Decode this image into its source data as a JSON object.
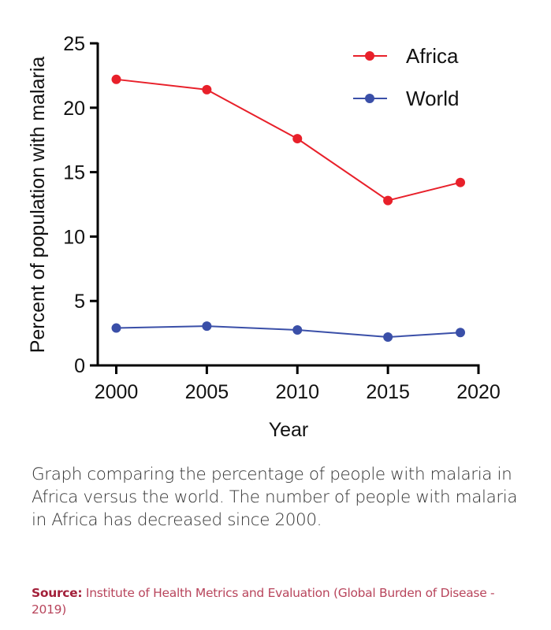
{
  "chart_data": {
    "type": "line",
    "xlabel": "Year",
    "ylabel": "Percent of population with malaria",
    "xlim": [
      2000,
      2020
    ],
    "ylim": [
      0,
      25
    ],
    "xticks": [
      2000,
      2005,
      2010,
      2015,
      2020
    ],
    "yticks": [
      0,
      5,
      10,
      15,
      20,
      25
    ],
    "grid": false,
    "legend_position": "top-right",
    "x": [
      2000,
      2005,
      2010,
      2015,
      2019
    ],
    "series": [
      {
        "name": "Africa",
        "color": "#e8202a",
        "values": [
          22.2,
          21.4,
          17.6,
          12.8,
          14.2
        ]
      },
      {
        "name": "World",
        "color": "#3a4fa8",
        "values": [
          2.9,
          3.05,
          2.75,
          2.2,
          2.55
        ]
      }
    ]
  },
  "caption": "Graph comparing the percentage of people with malaria in Africa versus the world. The number of people with malaria in Africa has decreased since 2000.",
  "source": {
    "label": "Source:",
    "text": " Institute of Health Metrics and Evaluation (Global Burden of Disease - 2019)"
  }
}
